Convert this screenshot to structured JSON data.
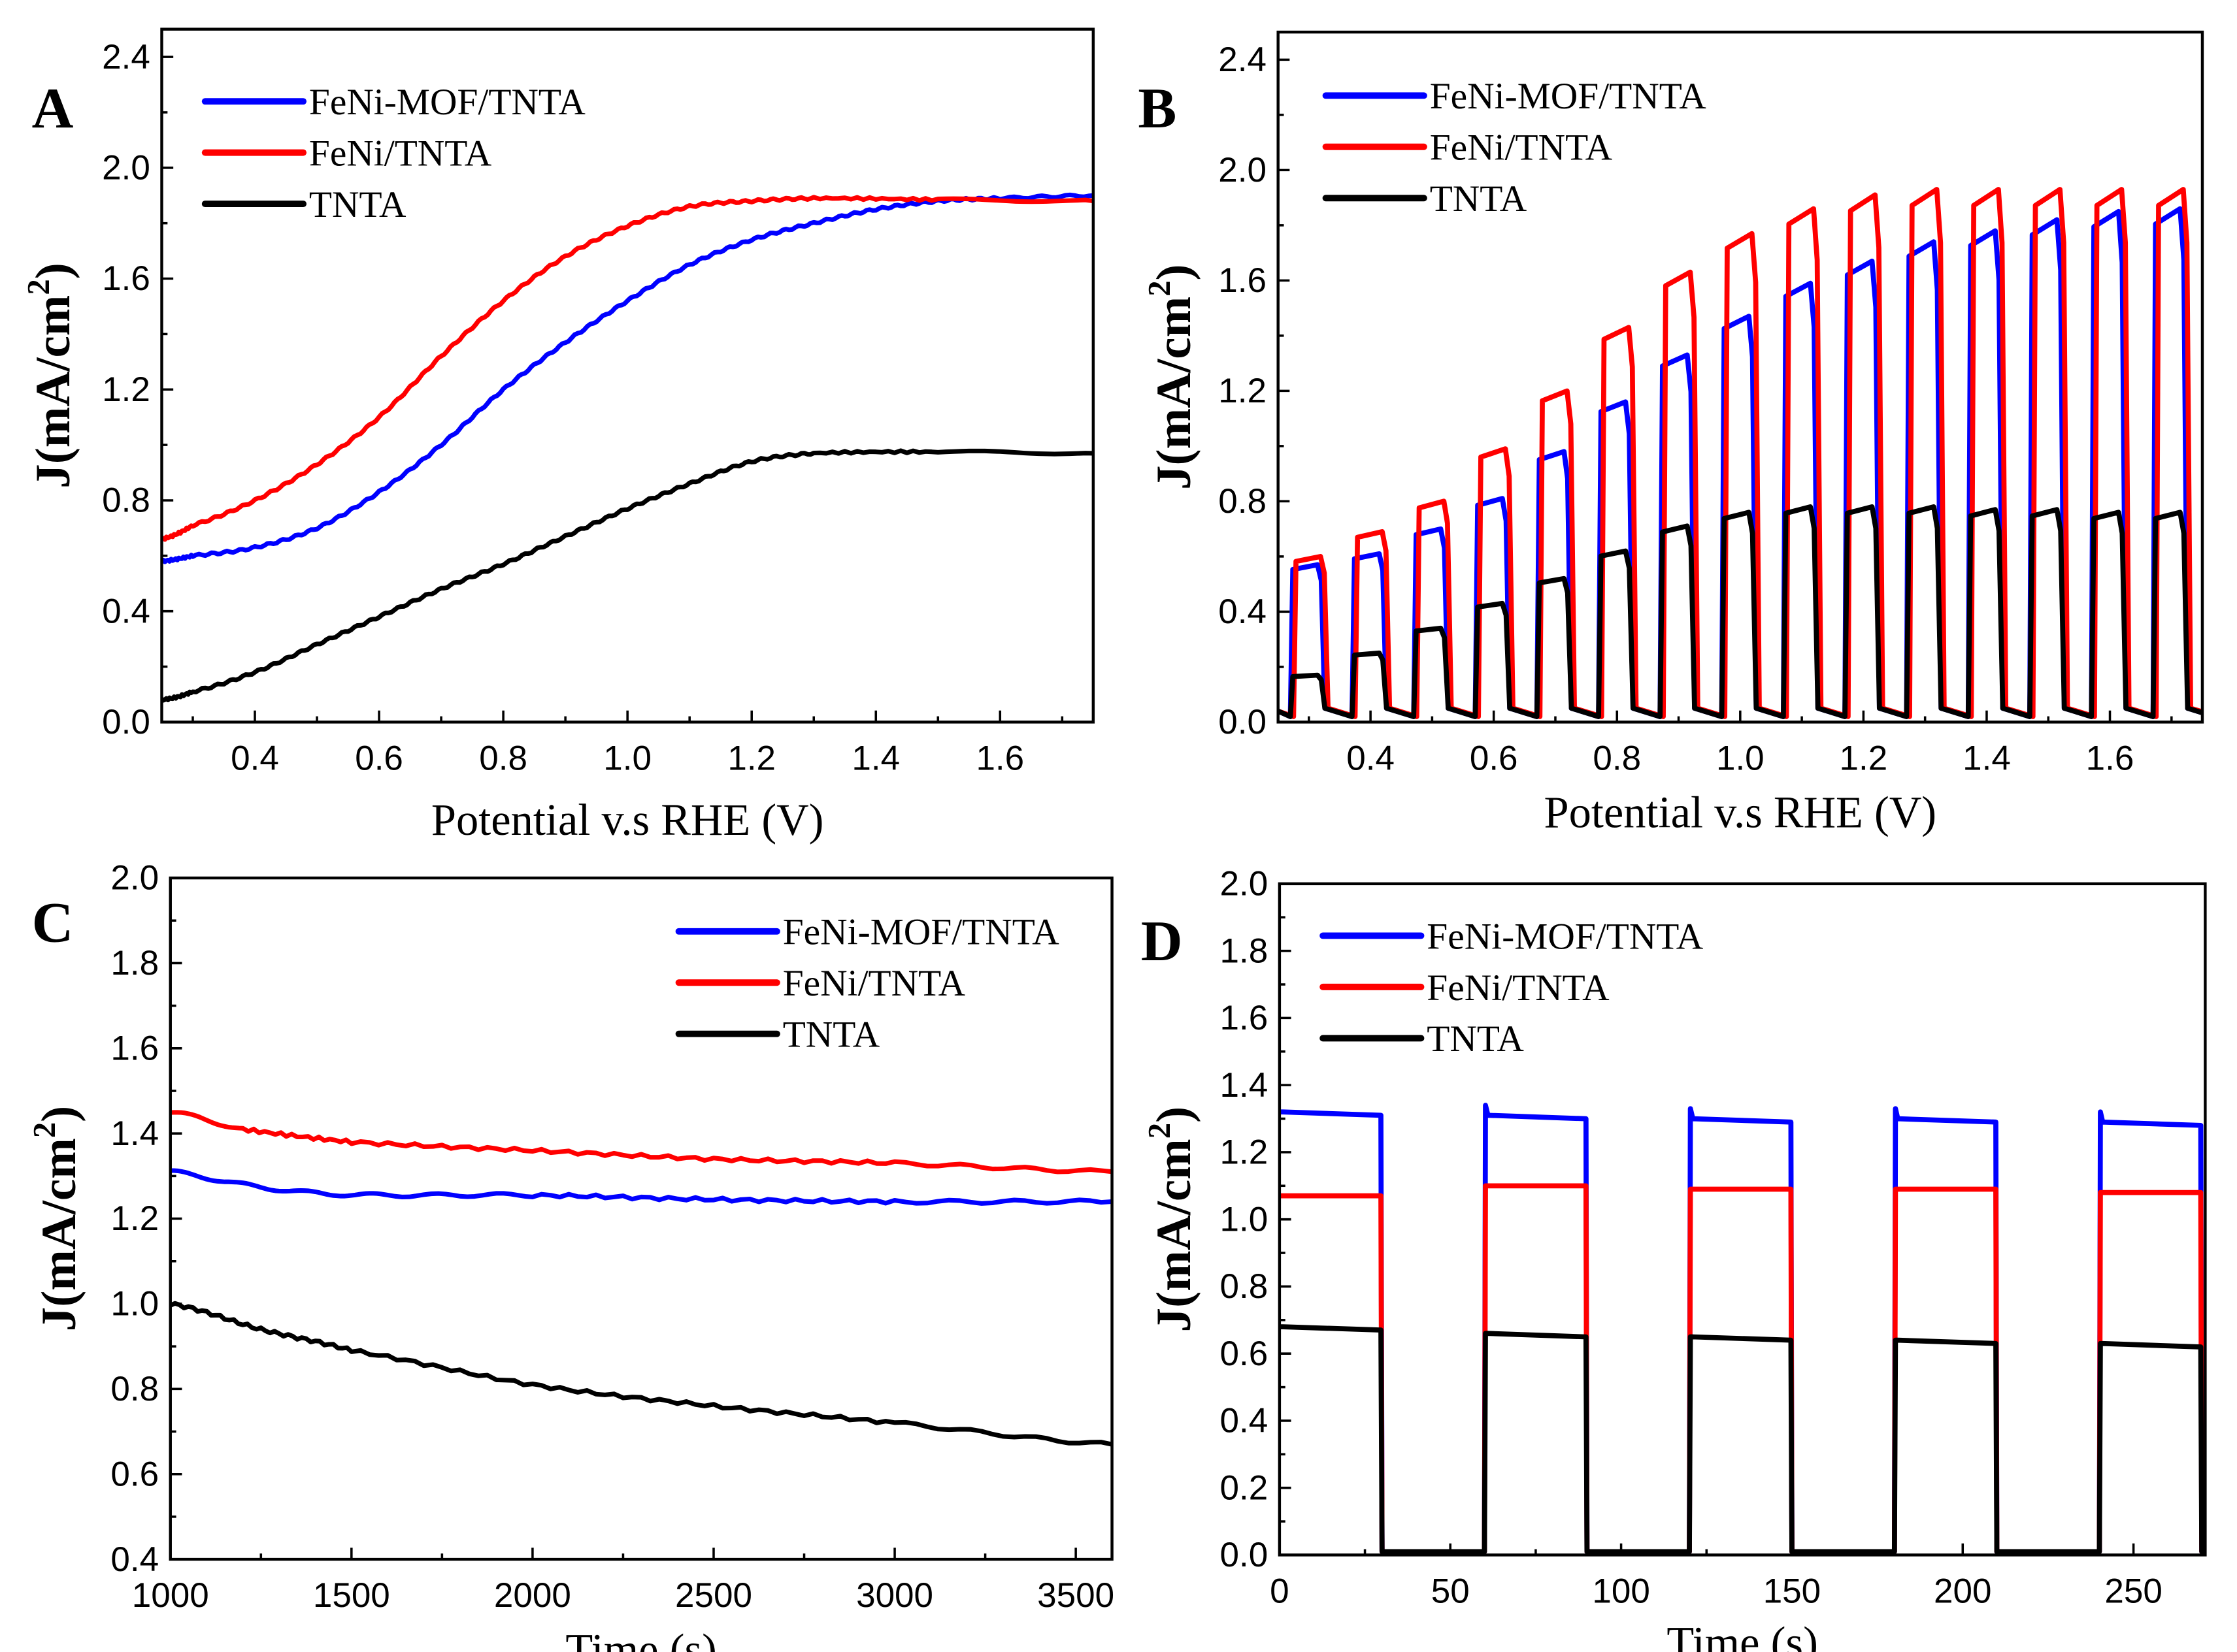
{
  "chart_data": [
    {
      "panel": "A",
      "type": "line",
      "xlabel": "Potential v.s RHE (V)",
      "ylabel": "J(mA/cm2)",
      "ylabel_main": "J(mA/cm",
      "ylabel_sup": "2",
      "ylabel_close": ")",
      "xlim": [
        0.25,
        1.75
      ],
      "ylim": [
        0,
        2.5
      ],
      "xticks": [
        "0.4",
        "0.6",
        "0.8",
        "1.0",
        "1.2",
        "1.4",
        "1.6"
      ],
      "yticks": [
        "0.0",
        "0.4",
        "0.8",
        "1.2",
        "1.6",
        "2.0",
        "2.4"
      ],
      "legend_position": "top-left",
      "grid": false,
      "series": [
        {
          "name": "FeNi-MOF/TNTA",
          "color": "#0000ff",
          "x": [
            0.25,
            0.3,
            0.4,
            0.5,
            0.6,
            0.7,
            0.8,
            0.9,
            1.0,
            1.1,
            1.2,
            1.3,
            1.4,
            1.5,
            1.6,
            1.75
          ],
          "y": [
            0.58,
            0.6,
            0.63,
            0.7,
            0.83,
            1.0,
            1.2,
            1.37,
            1.52,
            1.65,
            1.74,
            1.8,
            1.85,
            1.88,
            1.89,
            1.9
          ]
        },
        {
          "name": "FeNi/TNTA",
          "color": "#ff0000",
          "x": [
            0.25,
            0.3,
            0.4,
            0.5,
            0.6,
            0.7,
            0.8,
            0.9,
            1.0,
            1.1,
            1.2,
            1.3,
            1.5,
            1.75
          ],
          "y": [
            0.66,
            0.71,
            0.8,
            0.93,
            1.1,
            1.32,
            1.52,
            1.68,
            1.79,
            1.86,
            1.88,
            1.89,
            1.885,
            1.88
          ]
        },
        {
          "name": "TNTA",
          "color": "#000000",
          "x": [
            0.25,
            0.3,
            0.4,
            0.5,
            0.6,
            0.7,
            0.8,
            0.9,
            1.0,
            1.1,
            1.2,
            1.3,
            1.5,
            1.75
          ],
          "y": [
            0.08,
            0.11,
            0.18,
            0.28,
            0.38,
            0.48,
            0.57,
            0.67,
            0.77,
            0.86,
            0.94,
            0.97,
            0.975,
            0.97
          ]
        }
      ]
    },
    {
      "panel": "B",
      "type": "line",
      "xlabel": "Potential v.s RHE (V)",
      "ylabel": "J(mA/cm2)",
      "ylabel_main": "J(mA/cm",
      "ylabel_sup": "2",
      "ylabel_close": ")",
      "xlim": [
        0.25,
        1.75
      ],
      "ylim": [
        0,
        2.5
      ],
      "xticks": [
        "0.4",
        "0.6",
        "0.8",
        "1.0",
        "1.2",
        "1.4",
        "1.6"
      ],
      "yticks": [
        "0.0",
        "0.4",
        "0.8",
        "1.2",
        "1.6",
        "2.0",
        "2.4"
      ],
      "legend_position": "top-left",
      "grid": false,
      "chopped_light": {
        "first_on_V": 0.27,
        "period_V": 0.1,
        "on_duration_V": 0.05,
        "dark_current": 0.02
      },
      "series": [
        {
          "name": "FeNi-MOF/TNTA",
          "color": "#0000ff",
          "on_levels": [
            0.57,
            0.61,
            0.7,
            0.81,
            0.98,
            1.16,
            1.33,
            1.47,
            1.59,
            1.67,
            1.74,
            1.78,
            1.82,
            1.85,
            1.86
          ]
        },
        {
          "name": "FeNi/TNTA",
          "color": "#ff0000",
          "on_levels": [
            0.6,
            0.69,
            0.8,
            0.99,
            1.2,
            1.43,
            1.63,
            1.77,
            1.86,
            1.91,
            1.93,
            1.93,
            1.93,
            1.93,
            1.93
          ]
        },
        {
          "name": "TNTA",
          "color": "#000000",
          "on_levels": [
            0.17,
            0.25,
            0.34,
            0.43,
            0.52,
            0.62,
            0.71,
            0.76,
            0.78,
            0.78,
            0.78,
            0.77,
            0.77,
            0.76,
            0.76
          ]
        }
      ]
    },
    {
      "panel": "C",
      "type": "line",
      "xlabel": "Time (s)",
      "ylabel": "J(mA/cm2)",
      "ylabel_main": "J(mA/cm",
      "ylabel_sup": "2",
      "ylabel_close": ")",
      "xlim": [
        1000,
        3600
      ],
      "ylim": [
        0.4,
        2.0
      ],
      "xticks": [
        "1000",
        "1500",
        "2000",
        "2500",
        "3000",
        "3500"
      ],
      "yticks": [
        "0.4",
        "0.6",
        "0.8",
        "1.0",
        "1.2",
        "1.4",
        "1.6",
        "1.8",
        "2.0"
      ],
      "legend_position": "top-right",
      "grid": false,
      "series": [
        {
          "name": "FeNi-MOF/TNTA",
          "color": "#0000ff",
          "x": [
            1000,
            1200,
            1400,
            1600,
            2000,
            2500,
            3000,
            3600
          ],
          "y": [
            1.31,
            1.28,
            1.26,
            1.255,
            1.255,
            1.245,
            1.24,
            1.24
          ]
        },
        {
          "name": "FeNi/TNTA",
          "color": "#ff0000",
          "x": [
            1000,
            1200,
            1500,
            2000,
            2500,
            3000,
            3600
          ],
          "y": [
            1.45,
            1.41,
            1.38,
            1.36,
            1.34,
            1.33,
            1.31
          ]
        },
        {
          "name": "TNTA",
          "color": "#000000",
          "x": [
            1000,
            1250,
            1500,
            2000,
            2500,
            3000,
            3600
          ],
          "y": [
            1.0,
            0.94,
            0.89,
            0.81,
            0.76,
            0.72,
            0.67
          ]
        }
      ]
    },
    {
      "panel": "D",
      "type": "line",
      "xlabel": "Time (s)",
      "ylabel": "J(mA/cm2)",
      "ylabel_main": "J(mA/cm",
      "ylabel_sup": "2",
      "ylabel_close": ")",
      "xlim": [
        0,
        271
      ],
      "ylim": [
        0,
        2.0
      ],
      "xticks": [
        "0",
        "50",
        "100",
        "150",
        "200",
        "250"
      ],
      "yticks": [
        "0.0",
        "0.2",
        "0.4",
        "0.6",
        "0.8",
        "1.0",
        "1.2",
        "1.4",
        "1.6",
        "1.8",
        "2.0"
      ],
      "legend_position": "top-left",
      "grid": false,
      "light_on_intervals_s": [
        [
          0,
          30
        ],
        [
          60,
          90
        ],
        [
          120,
          150
        ],
        [
          180,
          210
        ],
        [
          240,
          270
        ]
      ],
      "dark_current": 0.01,
      "series": [
        {
          "name": "FeNi-MOF/TNTA",
          "color": "#0000ff",
          "on_levels": [
            [
              1.32,
              1.31
            ],
            [
              1.31,
              1.3
            ],
            [
              1.3,
              1.29
            ],
            [
              1.3,
              1.29
            ],
            [
              1.29,
              1.28
            ]
          ]
        },
        {
          "name": "FeNi/TNTA",
          "color": "#ff0000",
          "on_levels": [
            [
              1.07,
              1.07
            ],
            [
              1.1,
              1.1
            ],
            [
              1.09,
              1.09
            ],
            [
              1.09,
              1.09
            ],
            [
              1.08,
              1.08
            ]
          ]
        },
        {
          "name": "TNTA",
          "color": "#000000",
          "on_levels": [
            [
              0.68,
              0.67
            ],
            [
              0.66,
              0.65
            ],
            [
              0.65,
              0.64
            ],
            [
              0.64,
              0.63
            ],
            [
              0.63,
              0.62
            ]
          ]
        }
      ]
    }
  ]
}
